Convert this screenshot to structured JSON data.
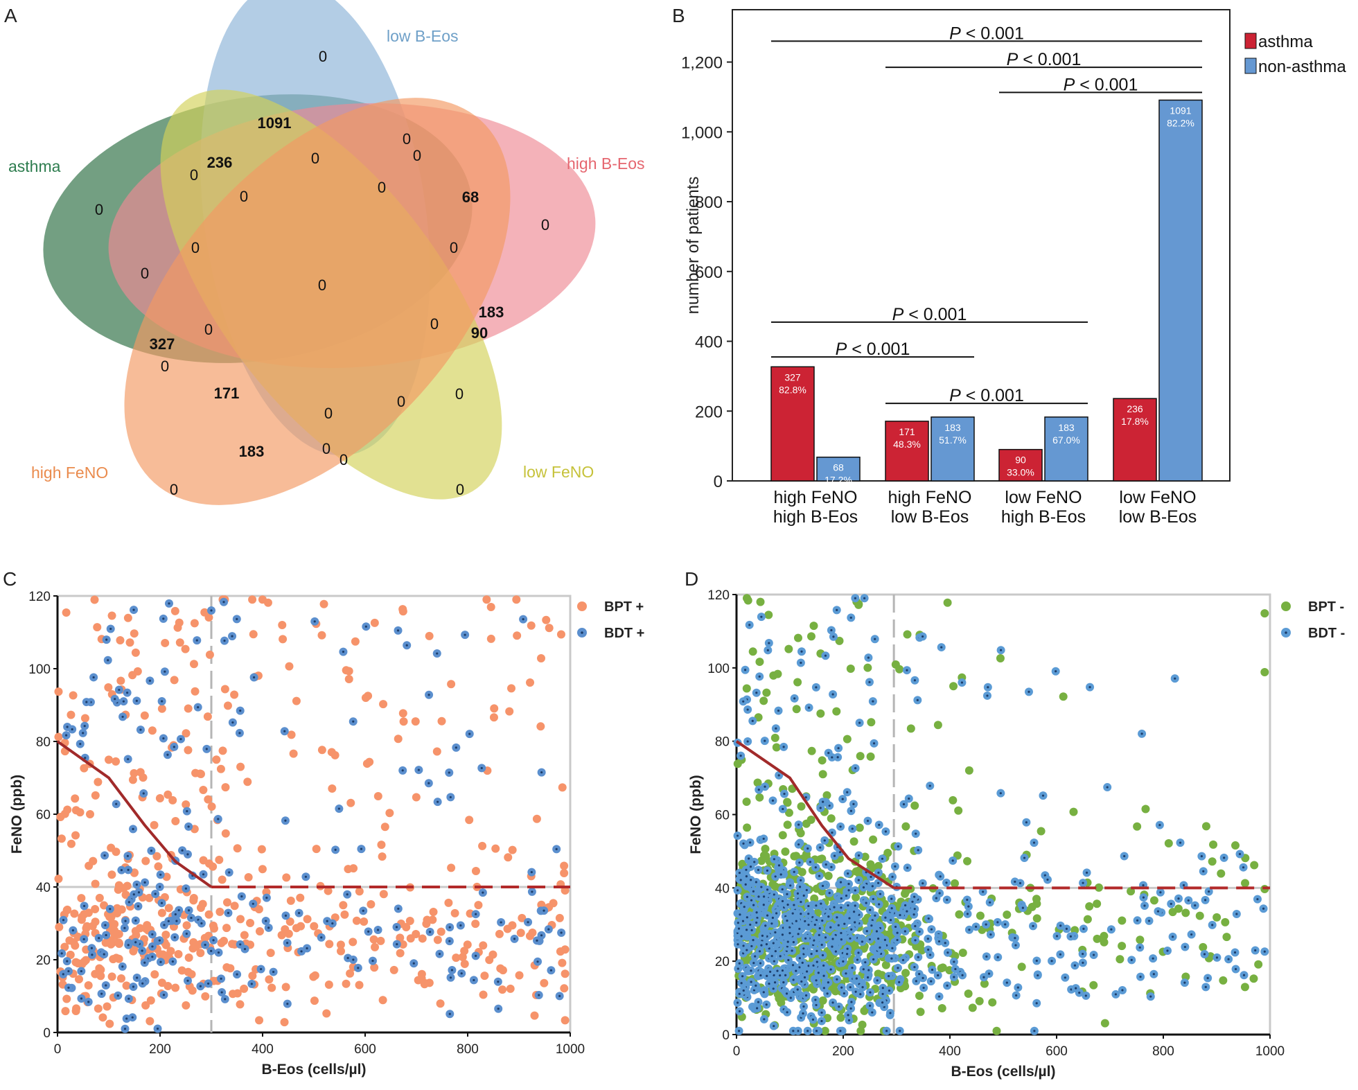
{
  "panels": {
    "a": "A",
    "b": "B",
    "c": "C",
    "d": "D"
  },
  "venn": {
    "sets": [
      {
        "name": "asthma",
        "color": "#2e7d4f",
        "fill": "#3d7a52"
      },
      {
        "name": "low B-Eos",
        "color": "#6fa0c8",
        "fill": "#8fb6d9"
      },
      {
        "name": "high B-Eos",
        "color": "#e5666f",
        "fill": "#ee8a95"
      },
      {
        "name": "low FeNO",
        "color": "#c6c23a",
        "fill": "#d3d15a"
      },
      {
        "name": "high FeNO",
        "color": "#ea8b4d",
        "fill": "#f39a63"
      }
    ],
    "counts": [
      "0",
      "1091",
      "236",
      "0",
      "0",
      "0",
      "0",
      "68",
      "0",
      "0",
      "0",
      "0",
      "0",
      "0",
      "0",
      "183",
      "90",
      "327",
      "0",
      "0",
      "171",
      "0",
      "0",
      "0",
      "183",
      "0",
      "0",
      "0",
      "0",
      "0",
      "0",
      "0",
      "0",
      "0"
    ],
    "bold_counts": [
      "1091",
      "236",
      "68",
      "183",
      "90",
      "327",
      "171",
      "183"
    ]
  },
  "chart_data": [
    {
      "type": "bar",
      "panel": "B",
      "ylabel": "number of patients",
      "ylim": [
        0,
        1350
      ],
      "yticks": [
        "0",
        "200",
        "400",
        "600",
        "800",
        "1,000",
        "1,200"
      ],
      "ytick_values": [
        0,
        200,
        400,
        600,
        800,
        1000,
        1200
      ],
      "categories": [
        {
          "line1": "high  FeNO",
          "line2": "high B-Eos"
        },
        {
          "line1": "high  FeNO",
          "line2": "low  B-Eos"
        },
        {
          "line1": "low     FeNO",
          "line2": "high B-Eos"
        },
        {
          "line1": "low  FeNO",
          "line2": "low B-Eos"
        }
      ],
      "series": [
        {
          "name": "asthma",
          "color": "#cc2334",
          "values": [
            327,
            171,
            90,
            236
          ],
          "labels": [
            [
              "327",
              "82.8%"
            ],
            [
              "171",
              "48.3%"
            ],
            [
              "90",
              "33.0%"
            ],
            [
              "236",
              "17.8%"
            ]
          ]
        },
        {
          "name": "non-asthma",
          "color": "#6598d2",
          "values": [
            68,
            183,
            183,
            1091
          ],
          "labels": [
            [
              "68",
              "17.2%"
            ],
            [
              "183",
              "51.7%"
            ],
            [
              "183",
              "67.0%"
            ],
            [
              "1091",
              "82.2%"
            ]
          ]
        }
      ],
      "significance": [
        {
          "text": "P < 0.001",
          "from": 0,
          "to": 3,
          "level": 1260
        },
        {
          "text": "P < 0.001",
          "from": 1,
          "to": 3,
          "level": 1185
        },
        {
          "text": "P < 0.001",
          "from": 2,
          "to": 3,
          "level": 1113
        },
        {
          "text": "P < 0.001",
          "from": 0,
          "to": 2,
          "level": 455
        },
        {
          "text": "P < 0.001",
          "from": 0,
          "to": 1,
          "level": 355
        },
        {
          "text": "P < 0.001",
          "from": 1,
          "to": 2,
          "level": 222
        }
      ]
    },
    {
      "type": "scatter",
      "panel": "C",
      "xlabel": "B-Eos (cells/µl)",
      "ylabel": "FeNO (ppb)",
      "xlim": [
        0,
        1000
      ],
      "ylim": [
        0,
        120
      ],
      "xticks": [
        "0",
        "200",
        "400",
        "600",
        "800",
        "1000"
      ],
      "yticks": [
        "0",
        "20",
        "40",
        "60",
        "80",
        "100",
        "120"
      ],
      "threshold_x": 300,
      "threshold_y": 40,
      "curve": [
        [
          0,
          80
        ],
        [
          100,
          70
        ],
        [
          170,
          57
        ],
        [
          230,
          47
        ],
        [
          300,
          40
        ]
      ],
      "series": [
        {
          "name": "BPT +",
          "color": "#f6936a",
          "seed": 11,
          "n": 520,
          "dotted": false
        },
        {
          "name": "BDT +",
          "color": "#5b8fce",
          "seed": 29,
          "n": 240,
          "dotted": true
        }
      ]
    },
    {
      "type": "scatter",
      "panel": "D",
      "xlabel": "B-Eos (cells/µl)",
      "ylabel": "FeNO (ppb)",
      "xlim": [
        0,
        1000
      ],
      "ylim": [
        0,
        120
      ],
      "xticks": [
        "0",
        "200",
        "400",
        "600",
        "800",
        "1000"
      ],
      "yticks": [
        "0",
        "20",
        "40",
        "60",
        "80",
        "100",
        "120"
      ],
      "threshold_x": 295,
      "threshold_y": 40,
      "curve": [
        [
          0,
          80
        ],
        [
          100,
          70
        ],
        [
          160,
          57
        ],
        [
          210,
          48
        ],
        [
          295,
          40
        ]
      ],
      "series": [
        {
          "name": "BPT -",
          "color": "#77b041",
          "seed": 47,
          "n": 640,
          "dotted": false
        },
        {
          "name": "BDT -",
          "color": "#5b9bd5",
          "seed": 83,
          "n": 820,
          "dotted": true
        }
      ]
    }
  ]
}
